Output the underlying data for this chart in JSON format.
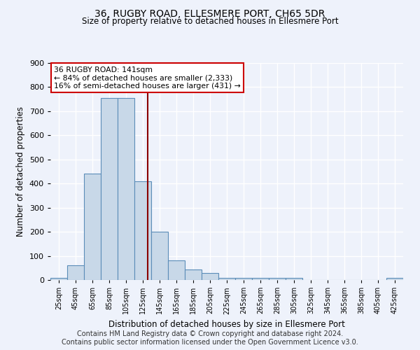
{
  "title": "36, RUGBY ROAD, ELLESMERE PORT, CH65 5DR",
  "subtitle": "Size of property relative to detached houses in Ellesmere Port",
  "xlabel": "Distribution of detached houses by size in Ellesmere Port",
  "ylabel": "Number of detached properties",
  "bin_edges": [
    25,
    45,
    65,
    85,
    105,
    125,
    145,
    165,
    185,
    205,
    225,
    245,
    265,
    285,
    305,
    325,
    345,
    365,
    385,
    405,
    425,
    445
  ],
  "bar_values": [
    10,
    60,
    440,
    755,
    755,
    410,
    200,
    80,
    45,
    30,
    10,
    10,
    10,
    10,
    10,
    0,
    0,
    0,
    0,
    0,
    8
  ],
  "bar_color": "#c8d8e8",
  "bar_edge_color": "#5b8db8",
  "property_line_x": 141,
  "property_line_color": "#8b0000",
  "annotation_line1": "36 RUGBY ROAD: 141sqm",
  "annotation_line2": "← 84% of detached houses are smaller (2,333)",
  "annotation_line3": "16% of semi-detached houses are larger (431) →",
  "annotation_box_color": "#ffffff",
  "annotation_box_edge": "#cc0000",
  "ylim": [
    0,
    900
  ],
  "yticks": [
    0,
    100,
    200,
    300,
    400,
    500,
    600,
    700,
    800,
    900
  ],
  "background_color": "#eef2fb",
  "grid_color": "#ffffff",
  "footnote1": "Contains HM Land Registry data © Crown copyright and database right 2024.",
  "footnote2": "Contains public sector information licensed under the Open Government Licence v3.0."
}
